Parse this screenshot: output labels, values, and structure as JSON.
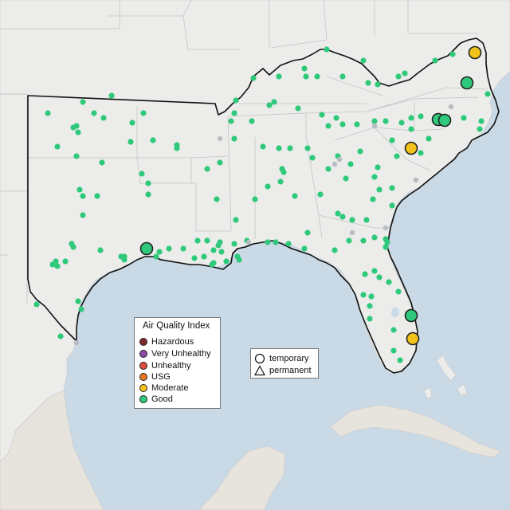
{
  "legend": {
    "title": "Air Quality Index",
    "categories": [
      {
        "label": "Hazardous",
        "color": "#7e2b2b"
      },
      {
        "label": "Very Unhealthy",
        "color": "#8e4aa8"
      },
      {
        "label": "Unhealthy",
        "color": "#e04a3c"
      },
      {
        "label": "USG",
        "color": "#e67a22"
      },
      {
        "label": "Moderate",
        "color": "#f2c31b"
      },
      {
        "label": "Good",
        "color": "#2ec97a"
      }
    ]
  },
  "monitor_type_legend": {
    "temporary_label": "temporary",
    "permanent_label": "permanent"
  },
  "colors": {
    "water": "#c9d9e6",
    "land": "#ececea",
    "good": "#2ec97a",
    "moderate": "#f2c31b",
    "inactive": "#b9bcc2"
  }
}
